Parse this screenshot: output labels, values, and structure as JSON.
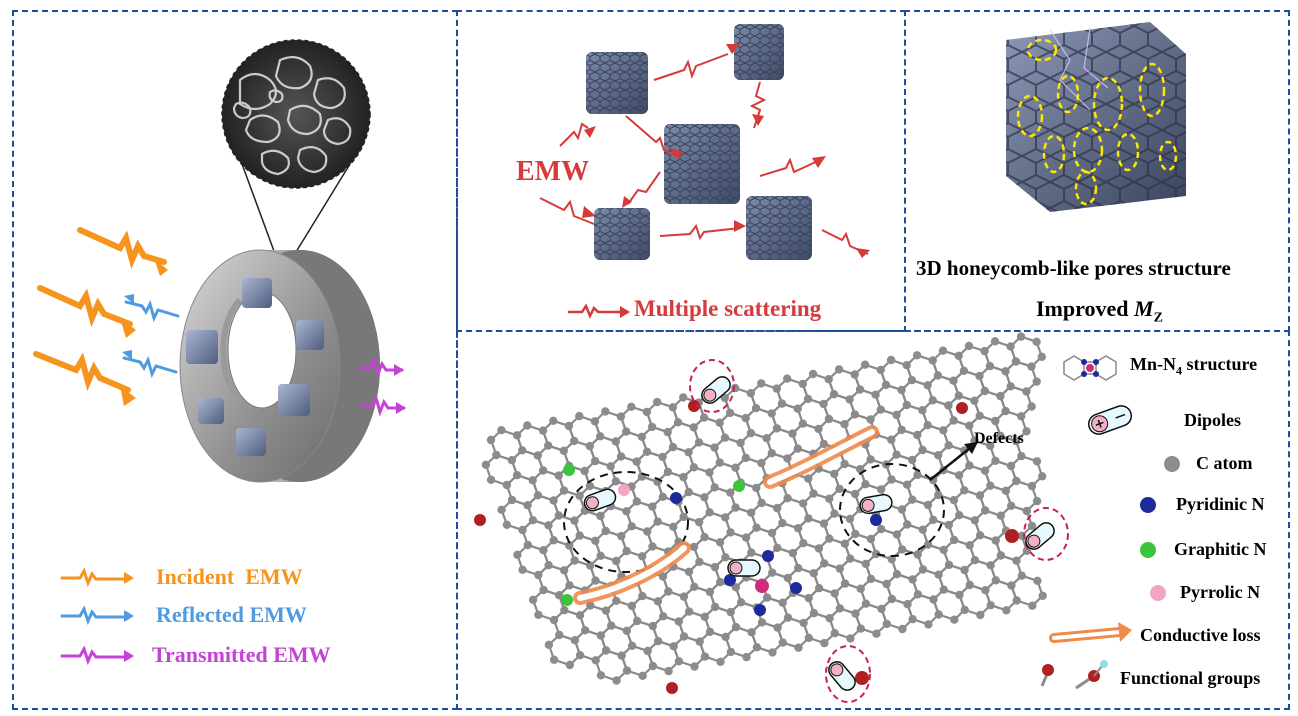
{
  "left_panel": {
    "legend": [
      {
        "label": "Incident  EMW",
        "color": "#f7941d"
      },
      {
        "label": "Reflected EMW",
        "color": "#4f9ae0"
      },
      {
        "label": "Transmitted EMW",
        "color": "#c542d6"
      }
    ]
  },
  "scatter_panel": {
    "emw_label": "EMW",
    "caption": "Multiple scattering",
    "color": "#d63a3a"
  },
  "honeycomb_panel": {
    "caption_line1": "3D honeycomb-like pores structure",
    "caption_line2_prefix": "Improved ",
    "caption_line2_symbol": "M",
    "caption_line2_subscript": "Z"
  },
  "graphene_panel": {
    "defects_label": "Defects",
    "legend": [
      {
        "label": "Mn-N",
        "sub": "4",
        "suffix": " structure"
      },
      {
        "label": "Dipoles"
      },
      {
        "label": "C atom",
        "color": "#808080"
      },
      {
        "label": "Pyridinic N",
        "color": "#1d2a9c"
      },
      {
        "label": "Graphitic N",
        "color": "#3cc43c"
      },
      {
        "label": "Pyrrolic N",
        "color": "#f2a6c6"
      },
      {
        "label": "Conductive loss",
        "color": "#f08a4b"
      },
      {
        "label": "Functional groups",
        "color": "#b02020"
      }
    ]
  },
  "colors": {
    "frame": "#1f4e9c",
    "cube": "#6f7fa0",
    "carbon": "#8c8c8c",
    "oxygen": "#b02020"
  }
}
